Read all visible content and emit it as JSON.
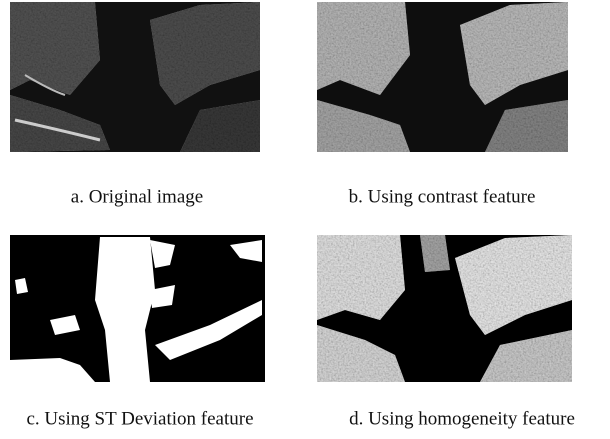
{
  "figure": {
    "panels": [
      {
        "caption": "a. Original image"
      },
      {
        "caption": "b. Using contrast feature"
      },
      {
        "caption": "c. Using ST Deviation feature"
      },
      {
        "caption": "d. Using homogeneity feature"
      }
    ]
  }
}
